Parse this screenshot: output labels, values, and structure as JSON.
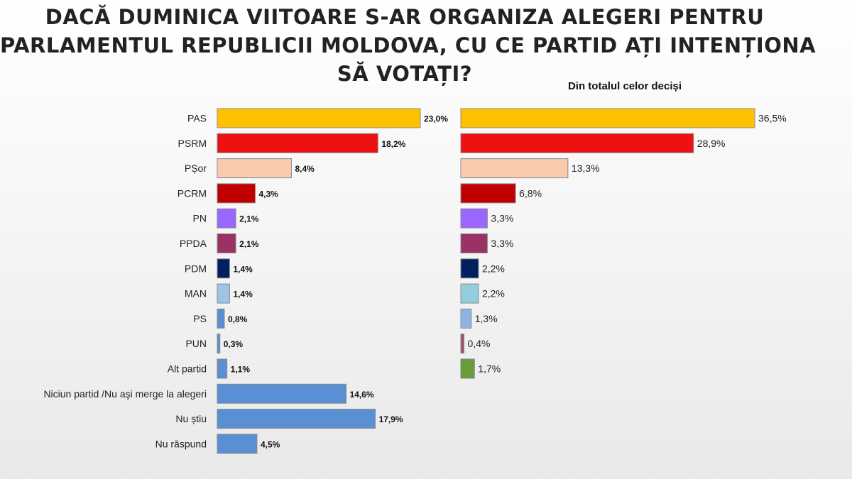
{
  "title": {
    "line1": "DACĂ DUMINICA VIITOARE S-AR ORGANIZA ALEGERI PENTRU",
    "line2": "PARLAMENTUL REPUBLICII MOLDOVA, CU CE PARTID AȚI INTENȚIONA",
    "line3": "SĂ VOTAȚI?"
  },
  "chart_data": [
    {
      "type": "bar",
      "orientation": "horizontal",
      "title": "",
      "categories": [
        "PAS",
        "PSRM",
        "PȘor",
        "PCRM",
        "PN",
        "PPDA",
        "PDM",
        "MAN",
        "PS",
        "PUN",
        "Alt partid",
        "Niciun partid /Nu aşi merge la alegeri",
        "Nu știu",
        "Nu răspund"
      ],
      "values": [
        23.0,
        18.2,
        8.4,
        4.3,
        2.1,
        2.1,
        1.4,
        1.4,
        0.8,
        0.3,
        1.1,
        14.6,
        17.9,
        4.5
      ],
      "labels": [
        "23,0%",
        "18,2%",
        "8,4%",
        "4,3%",
        "2,1%",
        "2,1%",
        "1,4%",
        "1,4%",
        "0,8%",
        "0,3%",
        "1,1%",
        "14,6%",
        "17,9%",
        "4,5%"
      ],
      "colors": [
        "#FFC000",
        "#EE1111",
        "#F8CBAD",
        "#C00000",
        "#9966FF",
        "#993366",
        "#002060",
        "#9DC3E6",
        "#5B8FD4",
        "#5B8FD4",
        "#5B8FD4",
        "#5B8FD4",
        "#5B8FD4",
        "#5B8FD4"
      ],
      "xlim": [
        0,
        23.0
      ]
    },
    {
      "type": "bar",
      "orientation": "horizontal",
      "title": "Din totalul celor deciși",
      "categories": [
        "PAS",
        "PSRM",
        "PȘor",
        "PCRM",
        "PN",
        "PPDA",
        "PDM",
        "MAN",
        "PS",
        "PUN",
        "Alt partid"
      ],
      "values": [
        36.5,
        28.9,
        13.3,
        6.8,
        3.3,
        3.3,
        2.2,
        2.2,
        1.3,
        0.4,
        1.7
      ],
      "labels": [
        "36,5%",
        "28,9%",
        "13,3%",
        "6,8%",
        "3,3%",
        "3,3%",
        "2,2%",
        "2,2%",
        "1,3%",
        "0,4%",
        "1,7%"
      ],
      "colors": [
        "#FFC000",
        "#EE1111",
        "#F8CBAD",
        "#C00000",
        "#9966FF",
        "#993366",
        "#002060",
        "#92CDDC",
        "#8EB4E3",
        "#A05070",
        "#6A9A3A"
      ],
      "xlim": [
        0,
        36.5
      ]
    }
  ]
}
